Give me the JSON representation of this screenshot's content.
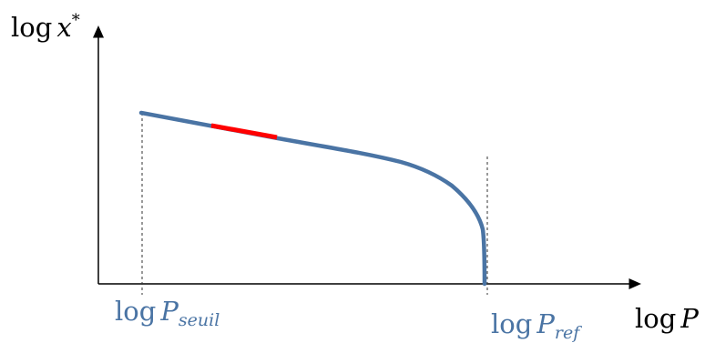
{
  "y_axis_label": {
    "prefix": "log",
    "var": "x",
    "sup": "*"
  },
  "x_axis_label": {
    "prefix": "log",
    "var": "P"
  },
  "markers": [
    {
      "prefix": "log",
      "var": "P",
      "sub": "seuil"
    },
    {
      "prefix": "log",
      "var": "P",
      "sub": "ref"
    }
  ],
  "colors": {
    "axis": "#000000",
    "curve": "#4a74a4",
    "highlight": "#ff0000",
    "marker_label": "#4a74a4",
    "guide": "#333333"
  }
}
